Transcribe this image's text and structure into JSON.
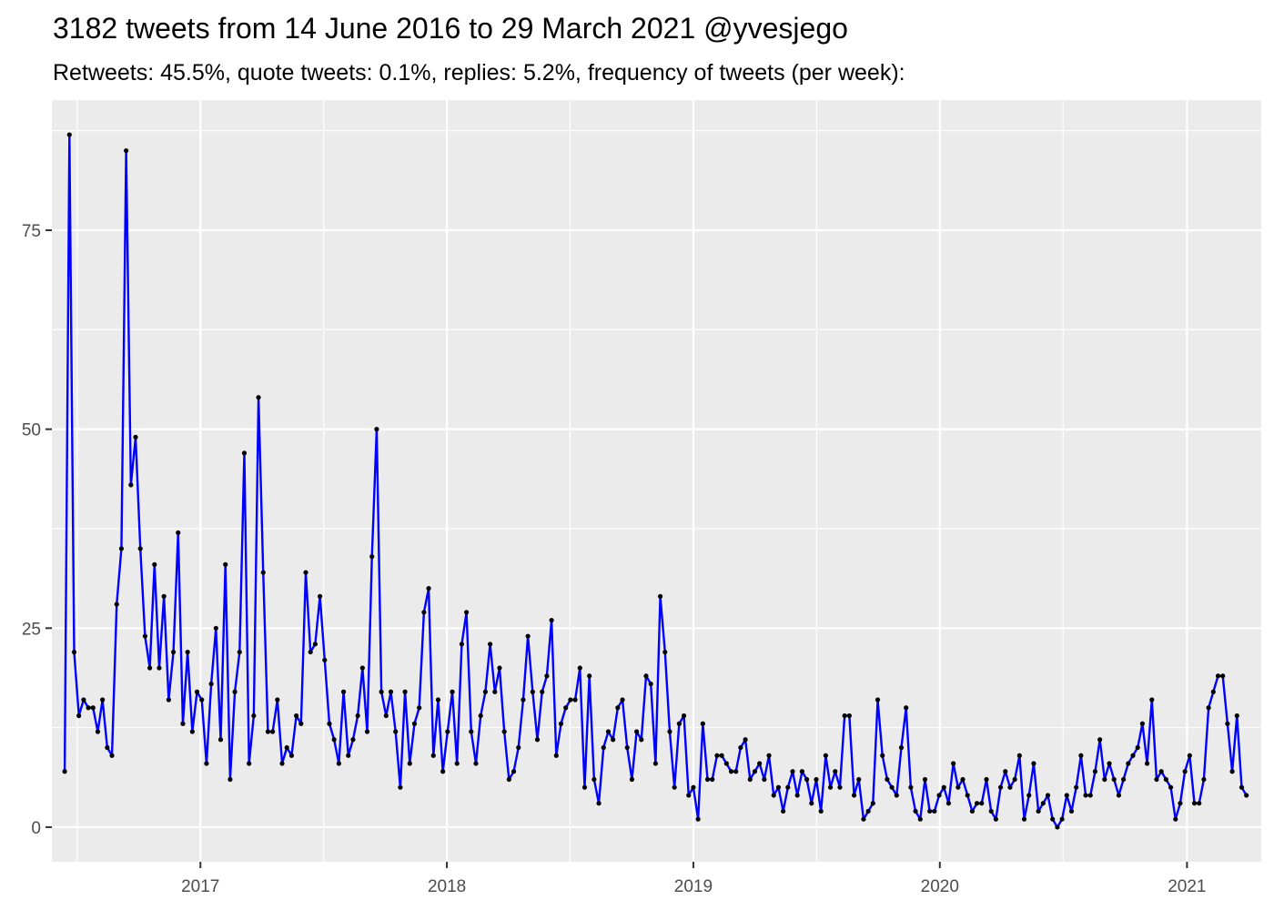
{
  "chart_data": {
    "type": "line",
    "title": "3182 tweets from 14 June 2016 to 29 March 2021 @yvesjego",
    "subtitle": "Retweets: 45.5%, quote tweets: 0.1%, replies: 5.2%, frequency of tweets (per week):",
    "xlabel": "",
    "ylabel": "",
    "x_start": "2016-06-14",
    "x_end": "2021-03-29",
    "x_interval_days": 7,
    "xlim": [
      "2016-05-26",
      "2021-04-21"
    ],
    "ylim": [
      -4.35,
      91.35
    ],
    "x_ticks": [
      {
        "date": "2017-01-01",
        "label": "2017"
      },
      {
        "date": "2018-01-01",
        "label": "2018"
      },
      {
        "date": "2019-01-01",
        "label": "2019"
      },
      {
        "date": "2020-01-01",
        "label": "2020"
      },
      {
        "date": "2021-01-01",
        "label": "2021"
      }
    ],
    "y_ticks": [
      0,
      25,
      50,
      75
    ],
    "grid": true,
    "background_color": "#ebebeb",
    "line_color": "#0000ff",
    "point_color": "#000000",
    "series": [
      {
        "values": [
          7,
          87,
          22,
          14,
          16,
          15,
          15,
          12,
          16,
          10,
          9,
          28,
          35,
          85,
          43,
          49,
          35,
          24,
          20,
          33,
          20,
          29,
          16,
          22,
          37,
          13,
          22,
          12,
          17,
          16,
          8,
          18,
          25,
          11,
          33,
          6,
          17,
          22,
          47,
          8,
          14,
          54,
          32,
          12,
          12,
          16,
          8,
          10,
          9,
          14,
          13,
          32,
          22,
          23,
          29,
          21,
          13,
          11,
          8,
          17,
          9,
          11,
          14,
          20,
          12,
          34,
          50,
          17,
          14,
          17,
          12,
          5,
          17,
          8,
          13,
          15,
          27,
          30,
          9,
          16,
          7,
          12,
          17,
          8,
          23,
          27,
          12,
          8,
          14,
          17,
          23,
          17,
          20,
          12,
          6,
          7,
          10,
          16,
          24,
          17,
          11,
          17,
          19,
          26,
          9,
          13,
          15,
          16,
          16,
          20,
          5,
          19,
          6,
          3,
          10,
          12,
          11,
          15,
          16,
          10,
          6,
          12,
          11,
          19,
          18,
          8,
          29,
          22,
          12,
          5,
          13,
          14,
          4,
          5,
          1,
          13,
          6,
          6,
          9,
          9,
          8,
          7,
          7,
          10,
          11,
          6,
          7,
          8,
          6,
          9,
          4,
          5,
          2,
          5,
          7,
          4,
          7,
          6,
          3,
          6,
          2,
          9,
          5,
          7,
          5,
          14,
          14,
          4,
          6,
          1,
          2,
          3,
          16,
          9,
          6,
          5,
          4,
          10,
          15,
          5,
          2,
          1,
          6,
          2,
          2,
          4,
          5,
          3,
          8,
          5,
          6,
          4,
          2,
          3,
          3,
          6,
          2,
          1,
          5,
          7,
          5,
          6,
          9,
          1,
          4,
          8,
          2,
          3,
          4,
          1,
          0,
          1,
          4,
          2,
          5,
          9,
          4,
          4,
          7,
          11,
          6,
          8,
          6,
          4,
          6,
          8,
          9,
          10,
          13,
          8,
          16,
          6,
          7,
          6,
          5,
          1,
          3,
          7,
          9,
          3,
          3,
          6,
          15,
          17,
          19,
          19,
          13,
          7,
          14,
          5,
          4
        ]
      }
    ]
  }
}
